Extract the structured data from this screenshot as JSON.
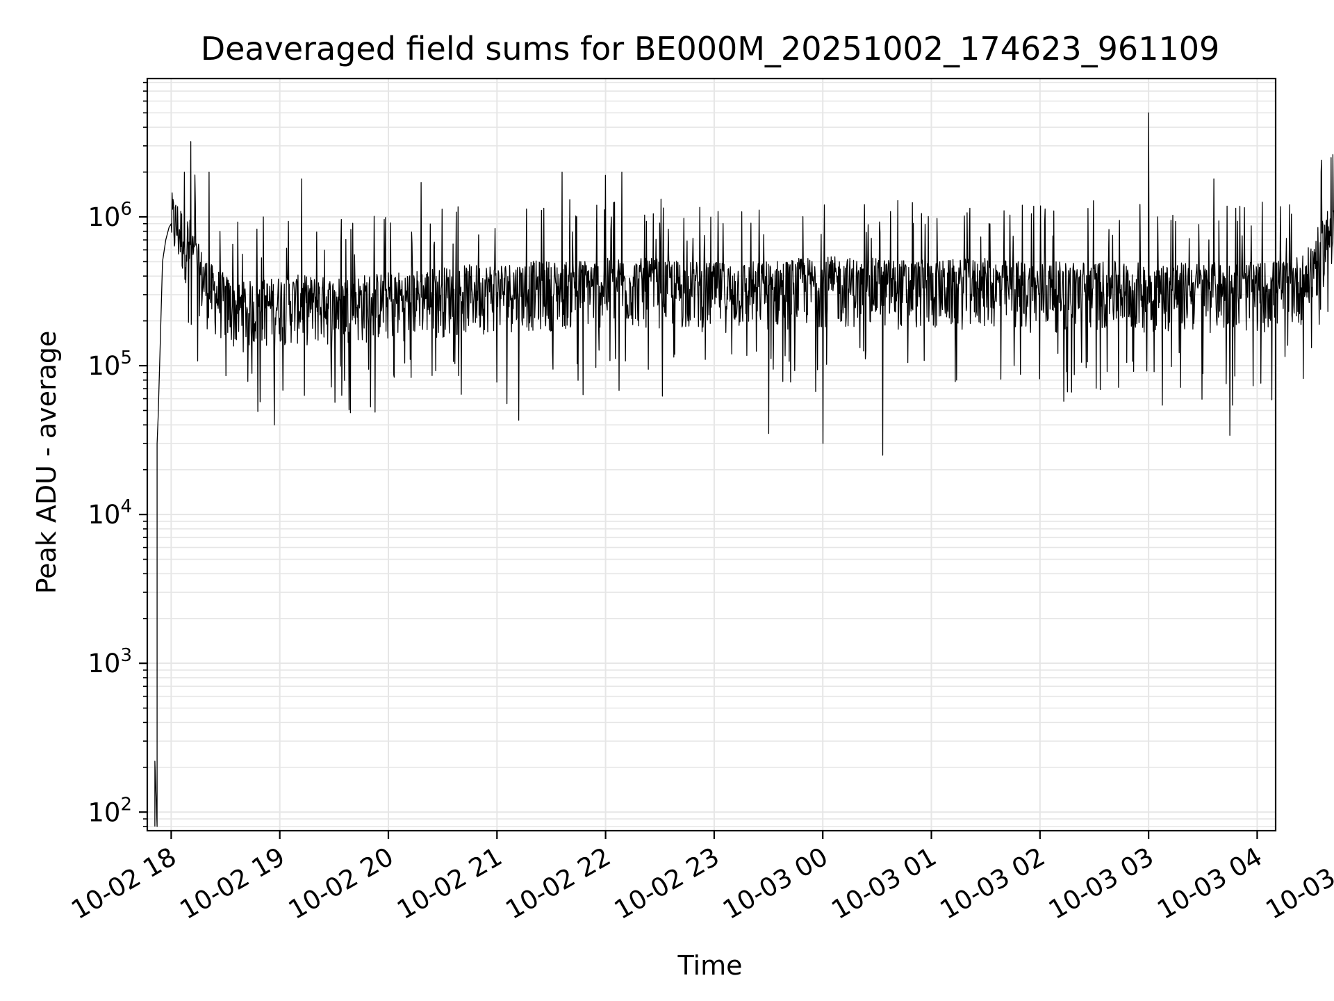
{
  "chart_data": {
    "type": "line",
    "title": "Deaveraged field sums for BE000M_20251002_174623_961109",
    "xlabel": "Time",
    "ylabel": "Peak ADU - average",
    "yscale": "log",
    "ylim": [
      75,
      8500000
    ],
    "xlim_hours_from_start": [
      -0.22,
      10.17
    ],
    "grid": true,
    "x_ticks": [
      {
        "hour": 0,
        "label": "10-02 18"
      },
      {
        "hour": 1,
        "label": "10-02 19"
      },
      {
        "hour": 2,
        "label": "10-02 20"
      },
      {
        "hour": 3,
        "label": "10-02 21"
      },
      {
        "hour": 4,
        "label": "10-02 22"
      },
      {
        "hour": 5,
        "label": "10-02 23"
      },
      {
        "hour": 6,
        "label": "10-03 00"
      },
      {
        "hour": 7,
        "label": "10-03 01"
      },
      {
        "hour": 8,
        "label": "10-03 02"
      },
      {
        "hour": 9,
        "label": "10-03 03"
      },
      {
        "hour": 10,
        "label": "10-03 04"
      },
      {
        "hour": 11,
        "label": "10-03 05"
      }
    ],
    "y_ticks": [
      {
        "value": 100,
        "base": "10",
        "exp": "2"
      },
      {
        "value": 1000,
        "base": "10",
        "exp": "3"
      },
      {
        "value": 10000,
        "base": "10",
        "exp": "4"
      },
      {
        "value": 100000,
        "base": "10",
        "exp": "5"
      },
      {
        "value": 1000000,
        "base": "10",
        "exp": "6"
      }
    ],
    "series": [
      {
        "name": "field sum",
        "color": "#000000",
        "x_hours": [
          -0.15,
          -0.15,
          -0.13,
          -0.13,
          -0.12,
          -0.1,
          -0.08,
          -0.05,
          -0.02,
          0.0,
          0.1,
          0.17,
          0.25,
          0.35,
          0.5,
          0.6,
          0.8,
          0.98,
          1.0,
          1.5,
          2.0,
          2.5,
          3.0,
          3.5,
          4.0,
          4.5,
          5.0,
          5.5,
          6.0,
          6.5,
          7.0,
          7.5,
          8.0,
          8.5,
          9.0,
          9.5,
          10.0,
          10.3,
          10.45,
          10.55,
          10.65,
          10.75,
          10.85,
          10.92,
          10.97,
          11.0,
          11.02
        ],
        "baseline_values": [
          80,
          220,
          80,
          30000,
          45000,
          150000,
          500000,
          700000,
          850000,
          900000,
          700000,
          600000,
          400000,
          300000,
          250000,
          220000,
          230000,
          240000,
          250000,
          240000,
          260000,
          280000,
          300000,
          310000,
          320000,
          320000,
          300000,
          310000,
          330000,
          320000,
          310000,
          320000,
          300000,
          310000,
          300000,
          300000,
          300000,
          320000,
          350000,
          500000,
          700000,
          1000000,
          1300000,
          1000000,
          500000,
          200,
          80
        ],
        "spikes": [
          {
            "hour": 0.18,
            "value": 3200000
          },
          {
            "hour": 0.12,
            "value": 2000000
          },
          {
            "hour": 0.35,
            "value": 2000000
          },
          {
            "hour": 0.85,
            "value": 1000000
          },
          {
            "hour": 0.95,
            "value": 40000
          },
          {
            "hour": 1.2,
            "value": 1800000
          },
          {
            "hour": 2.3,
            "value": 1700000
          },
          {
            "hour": 3.2,
            "value": 43000
          },
          {
            "hour": 3.6,
            "value": 2000000
          },
          {
            "hour": 4.0,
            "value": 1900000
          },
          {
            "hour": 4.15,
            "value": 2000000
          },
          {
            "hour": 5.5,
            "value": 35000
          },
          {
            "hour": 6.0,
            "value": 30000
          },
          {
            "hour": 6.55,
            "value": 25000
          },
          {
            "hour": 9.0,
            "value": 5000000
          },
          {
            "hour": 9.6,
            "value": 1800000
          },
          {
            "hour": 9.75,
            "value": 34000
          },
          {
            "hour": 10.73,
            "value": 2800000
          },
          {
            "hour": 10.68,
            "value": 2500000
          }
        ]
      }
    ]
  }
}
